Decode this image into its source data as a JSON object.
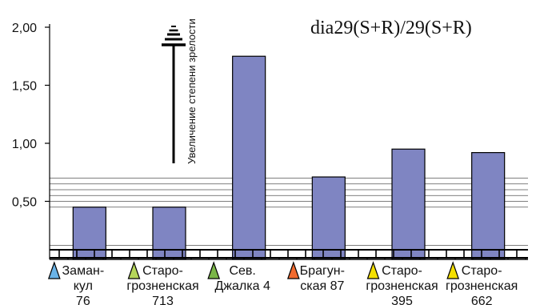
{
  "chart_data": {
    "type": "bar",
    "title": "dia29(S+R)/29(S+R)",
    "annotation": "Увеличение степени зрелости",
    "yticks": [
      "2,00",
      "1,50",
      "1,00",
      "0,50"
    ],
    "ylim": [
      0,
      2.0
    ],
    "categories": [
      {
        "lines": [
          "Заман-",
          "кул",
          "76"
        ],
        "marker_color": "#6ab4e8"
      },
      {
        "lines": [
          "Старо-",
          "грозненская",
          "713"
        ],
        "marker_color": "#b5d65a"
      },
      {
        "lines": [
          "Сев.",
          "Джалка 4"
        ],
        "marker_color": "#7ab648"
      },
      {
        "lines": [
          "Брагун-",
          "ская 87"
        ],
        "marker_color": "#f26a2e"
      },
      {
        "lines": [
          "Старо-",
          "грозненская",
          "395"
        ],
        "marker_color": "#f5e000"
      },
      {
        "lines": [
          "Старо-",
          "грозненская",
          "662"
        ],
        "marker_color": "#f5e000"
      }
    ],
    "values": [
      0.45,
      0.45,
      1.75,
      0.71,
      0.95,
      0.92
    ],
    "bar_color": "#7f85c2",
    "grid": false
  }
}
